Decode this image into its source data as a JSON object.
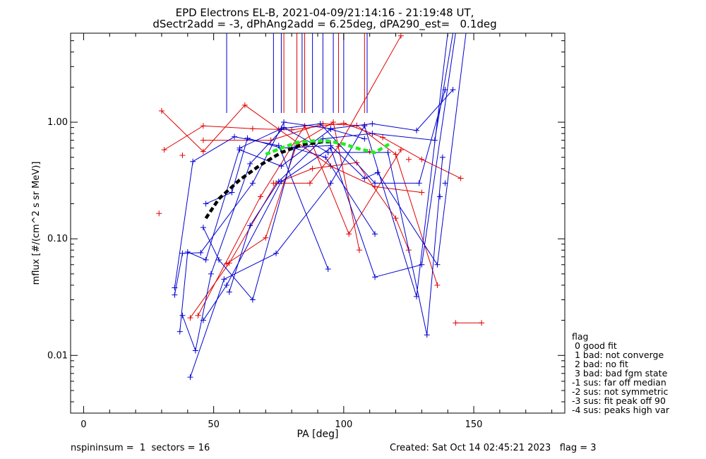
{
  "title": {
    "line1": "EPD Electrons EL-B, 2021-04-09/21:14:16 - 21:19:48 UT,",
    "line2": "dSectr2add = -3, dPhAng2add = 6.25deg, dPA290_est=   0.1deg"
  },
  "footer": {
    "left": "nspininsum =  1  sectors = 16",
    "right": "Created: Sat Oct 14 02:45:21 2023   flag = 3"
  },
  "legend": {
    "header": "flag",
    "items": [
      " 0 good fit",
      " 1 bad: not converge",
      " 2 bad: no fit",
      " 3 bad: bad fgm state",
      "-1 sus: far off median",
      "-2 sus: not symmetric",
      "-3 sus: fit peak off 90",
      "-4 sus: peaks high var"
    ]
  },
  "chart_data": {
    "type": "line",
    "xlabel": "PA [deg]",
    "ylabel": "mflux [#/(cm^2 s sr MeV)]",
    "xlim": [
      -5,
      185
    ],
    "ylim": [
      0.0032,
      5.8
    ],
    "yscale": "log",
    "x_ticks": [
      0,
      50,
      100,
      150
    ],
    "x_tick_labels": [
      "0",
      "50",
      "100",
      "150"
    ],
    "y_ticks": [
      0.01,
      0.1,
      1.0
    ],
    "y_tick_labels": [
      "0.01",
      "0.10",
      "1.00"
    ],
    "colors": {
      "red": "#e00000",
      "blue": "#0000d0",
      "black": "#000000",
      "green": "#22ee22"
    },
    "vertical_lines": {
      "blue": {
        "x": [
          55,
          73,
          76,
          84,
          88,
          92,
          96,
          100,
          109
        ],
        "y_from": 1.2
      },
      "red": {
        "x": [
          77,
          82,
          85,
          98,
          108
        ],
        "y_from": 1.2
      }
    },
    "series": [
      {
        "color": "red",
        "points": [
          [
            30,
            1.25
          ],
          [
            46,
            0.56
          ],
          [
            62,
            1.4
          ],
          [
            75,
            0.87
          ],
          [
            95,
            0.42
          ],
          [
            112,
            0.28
          ],
          [
            130,
            0.25
          ]
        ]
      },
      {
        "color": "red",
        "points": [
          [
            31,
            0.58
          ],
          [
            46,
            0.93
          ],
          [
            65,
            0.88
          ],
          [
            80,
            0.86
          ],
          [
            100,
            0.98
          ],
          [
            115,
            0.74
          ],
          [
            130,
            0.48
          ],
          [
            145,
            0.33
          ]
        ]
      },
      {
        "color": "red",
        "points": [
          [
            46,
            0.7
          ],
          [
            72,
            0.7
          ],
          [
            92,
            0.97
          ],
          [
            105,
            0.94
          ],
          [
            120,
            0.53
          ],
          [
            136,
            0.04
          ]
        ]
      },
      {
        "color": "red",
        "points": [
          [
            41,
            0.021
          ],
          [
            56,
            0.062
          ],
          [
            74,
            0.3
          ],
          [
            88,
            0.4
          ],
          [
            105,
            0.45
          ],
          [
            120,
            0.15
          ],
          [
            125,
            0.08
          ]
        ]
      },
      {
        "color": "red",
        "points": [
          [
            44,
            0.022
          ],
          [
            68,
            0.23
          ],
          [
            85,
            0.93
          ],
          [
            102,
            0.11
          ],
          [
            122,
            0.58
          ]
        ]
      },
      {
        "color": "red",
        "points": [
          [
            55,
            0.061
          ],
          [
            70,
            0.102
          ],
          [
            82,
            0.65
          ],
          [
            96,
            1.0
          ],
          [
            106,
            0.08
          ]
        ]
      },
      {
        "color": "red",
        "points": [
          [
            73,
            0.3
          ],
          [
            87,
            0.3
          ],
          [
            98,
            0.62
          ],
          [
            122,
            5.5
          ]
        ]
      },
      {
        "color": "red",
        "points": [
          [
            143,
            0.019
          ],
          [
            153,
            0.019
          ]
        ]
      },
      {
        "color": "red",
        "markers_only": true,
        "points": [
          [
            29,
            0.165
          ],
          [
            38,
            0.52
          ],
          [
            108,
            0.95
          ],
          [
            110,
            0.56
          ],
          [
            125,
            0.48
          ]
        ]
      },
      {
        "color": "blue",
        "points": [
          [
            35,
            0.038
          ],
          [
            42,
            0.46
          ],
          [
            58,
            0.75
          ],
          [
            75,
            0.63
          ],
          [
            94,
            0.055
          ]
        ]
      },
      {
        "color": "blue",
        "points": [
          [
            35,
            0.033
          ],
          [
            38,
            0.075
          ],
          [
            45,
            0.076
          ],
          [
            65,
            0.3
          ],
          [
            77,
            1.0
          ],
          [
            95,
            0.88
          ],
          [
            111,
            0.97
          ],
          [
            128,
            0.85
          ],
          [
            142,
            1.9
          ]
        ]
      },
      {
        "color": "blue",
        "points": [
          [
            37,
            0.016
          ],
          [
            40,
            0.077
          ],
          [
            47,
            0.066
          ],
          [
            60,
            0.6
          ],
          [
            76,
            0.88
          ],
          [
            91,
            0.97
          ],
          [
            112,
            0.3
          ],
          [
            129,
            0.3
          ],
          [
            139,
            1.9
          ]
        ]
      },
      {
        "color": "blue",
        "points": [
          [
            38,
            0.022
          ],
          [
            43,
            0.011
          ],
          [
            49,
            0.05
          ],
          [
            64,
            0.44
          ],
          [
            77,
            0.9
          ],
          [
            94,
            0.55
          ],
          [
            117,
            0.55
          ],
          [
            132,
            0.015
          ],
          [
            138,
            0.5
          ]
        ]
      },
      {
        "color": "blue",
        "points": [
          [
            41,
            0.0065
          ],
          [
            54,
            0.045
          ],
          [
            74,
            0.075
          ],
          [
            95,
            0.3
          ],
          [
            108,
            0.93
          ],
          [
            128,
            0.032
          ],
          [
            140,
            6.0
          ]
        ]
      },
      {
        "color": "blue",
        "points": [
          [
            46,
            0.02
          ],
          [
            55,
            0.04
          ],
          [
            76,
            0.31
          ],
          [
            95,
            0.6
          ],
          [
            112,
            0.047
          ],
          [
            130,
            0.06
          ],
          [
            143,
            6.0
          ]
        ]
      },
      {
        "color": "blue",
        "points": [
          [
            46,
            0.125
          ],
          [
            52,
            0.066
          ],
          [
            65,
            0.03
          ],
          [
            81,
            0.6
          ],
          [
            93,
            0.5
          ],
          [
            112,
            0.11
          ]
        ]
      },
      {
        "color": "blue",
        "points": [
          [
            47,
            0.2
          ],
          [
            57,
            0.25
          ],
          [
            63,
            0.73
          ],
          [
            76,
            0.6
          ],
          [
            95,
            0.63
          ],
          [
            108,
            0.33
          ],
          [
            113,
            0.37
          ],
          [
            136,
            0.06
          ],
          [
            147,
            6.0
          ]
        ]
      },
      {
        "color": "blue",
        "points": [
          [
            56,
            0.035
          ],
          [
            64,
            0.13
          ],
          [
            75,
            0.31
          ],
          [
            92,
            0.72
          ],
          [
            111,
            0.8
          ],
          [
            135,
            0.7
          ],
          [
            142,
            6.0
          ]
        ]
      },
      {
        "color": "blue",
        "points": [
          [
            60,
            0.58
          ],
          [
            76,
            0.42
          ],
          [
            95,
            0.87
          ],
          [
            108,
            0.72
          ]
        ]
      },
      {
        "color": "blue",
        "markers_only": true,
        "points": [
          [
            137,
            0.23
          ],
          [
            139,
            0.3
          ]
        ]
      },
      {
        "color": "black",
        "style": "dashed-thick",
        "points": [
          [
            47,
            0.15
          ],
          [
            52,
            0.22
          ],
          [
            60,
            0.32
          ],
          [
            68,
            0.43
          ],
          [
            76,
            0.55
          ],
          [
            84,
            0.64
          ],
          [
            92,
            0.68
          ],
          [
            96,
            0.68
          ]
        ]
      },
      {
        "color": "green",
        "style": "dashed-thick",
        "points": [
          [
            70,
            0.53
          ],
          [
            76,
            0.6
          ],
          [
            82,
            0.67
          ],
          [
            88,
            0.69
          ],
          [
            94,
            0.69
          ],
          [
            100,
            0.65
          ],
          [
            106,
            0.59
          ],
          [
            112,
            0.55
          ],
          [
            118,
            0.66
          ]
        ]
      }
    ]
  }
}
